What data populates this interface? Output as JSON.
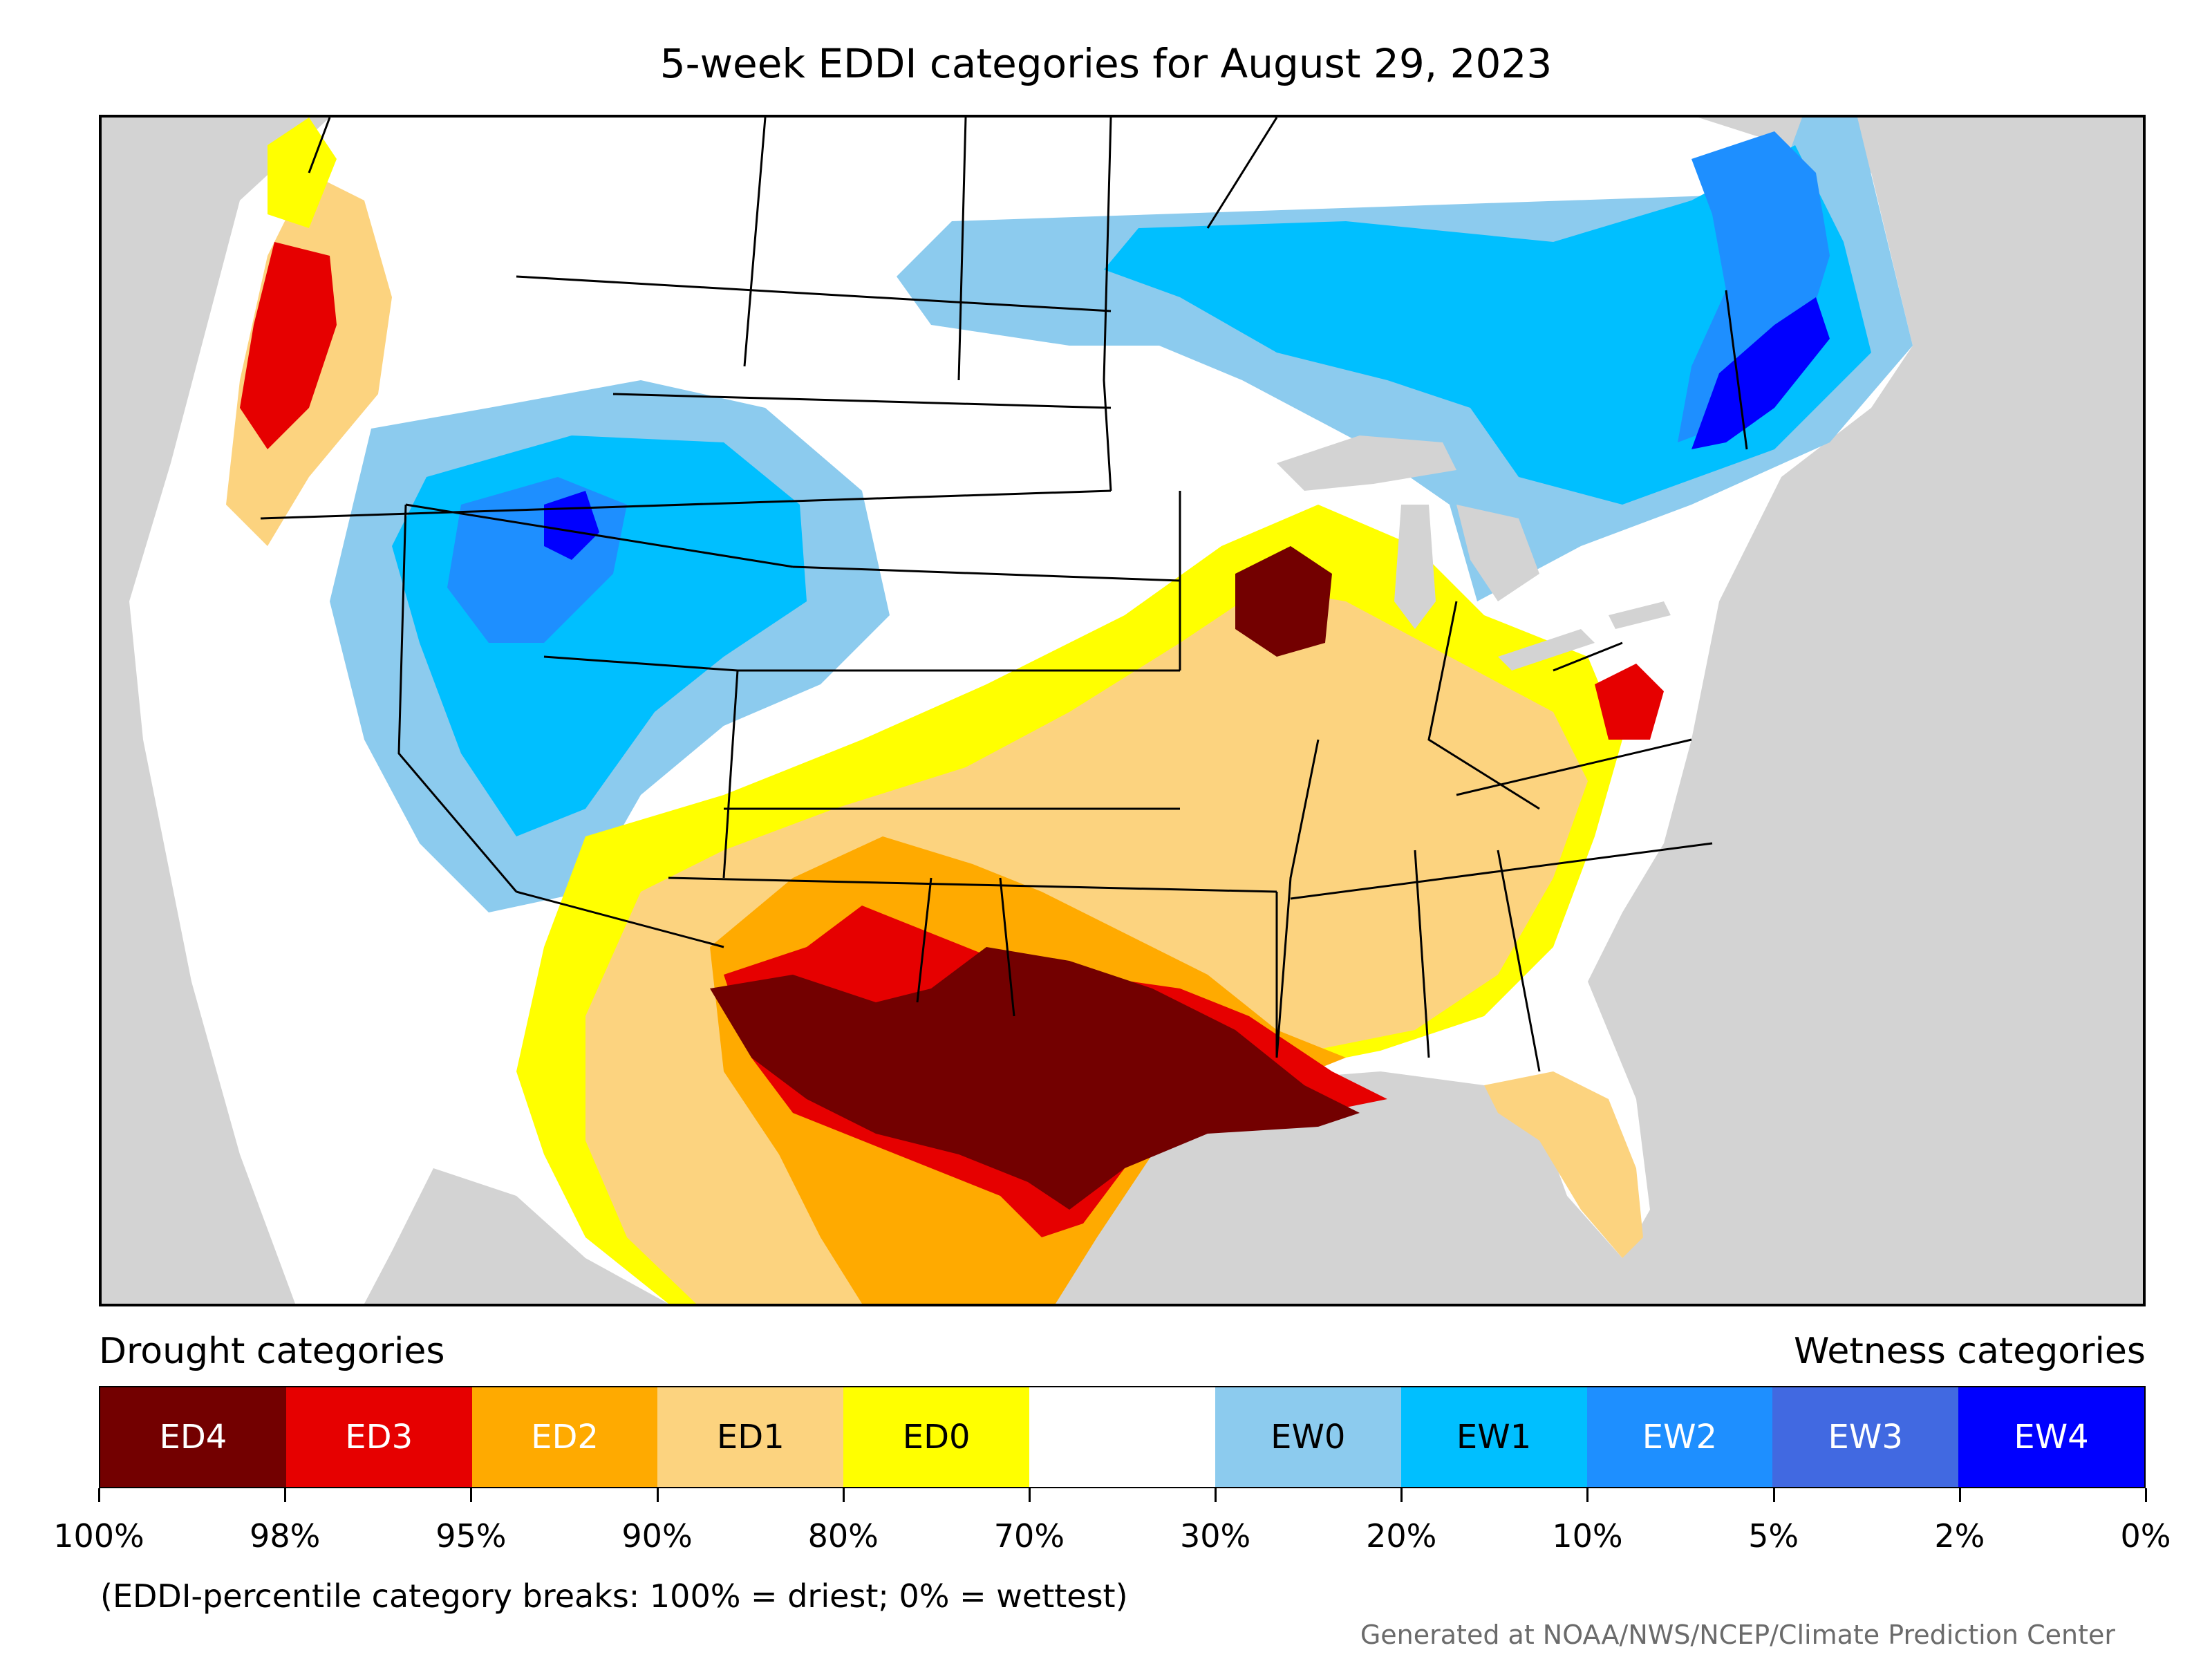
{
  "title": "5-week EDDI categories for August 29, 2023",
  "legend": {
    "drought_heading": "Drought categories",
    "wetness_heading": "Wetness categories",
    "categories": [
      {
        "label": "ED4",
        "color": "#730000",
        "text_color": "#ffffff"
      },
      {
        "label": "ED3",
        "color": "#e60000",
        "text_color": "#ffffff"
      },
      {
        "label": "ED2",
        "color": "#ffaa00",
        "text_color": "#ffffff"
      },
      {
        "label": "ED1",
        "color": "#fcd37f",
        "text_color": "#000000"
      },
      {
        "label": "ED0",
        "color": "#ffff00",
        "text_color": "#000000"
      },
      {
        "label": "",
        "color": "#ffffff",
        "text_color": "#000000"
      },
      {
        "label": "EW0",
        "color": "#8ccbee",
        "text_color": "#000000"
      },
      {
        "label": "EW1",
        "color": "#00bfff",
        "text_color": "#000000"
      },
      {
        "label": "EW2",
        "color": "#1e8fff",
        "text_color": "#ffffff"
      },
      {
        "label": "EW3",
        "color": "#4169e1",
        "text_color": "#ffffff"
      },
      {
        "label": "EW4",
        "color": "#0000ff",
        "text_color": "#ffffff"
      }
    ],
    "tick_labels": [
      "100%",
      "98%",
      "95%",
      "90%",
      "80%",
      "70%",
      "30%",
      "20%",
      "10%",
      "5%",
      "2%",
      "0%"
    ]
  },
  "footnote": "(EDDI-percentile category breaks: 100% = driest; 0% = wettest)",
  "credit": "Generated at NOAA/NWS/NCEP/Climate Prediction Center",
  "map": {
    "ocean_color": "#d3d3d3",
    "background_category_color": "#ffffff",
    "state_line_color": "#000000"
  }
}
